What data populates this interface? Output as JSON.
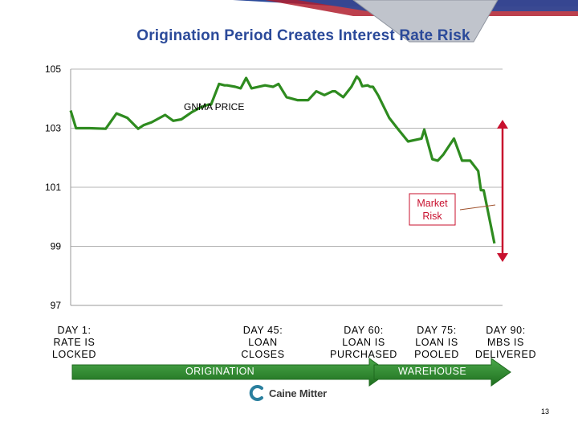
{
  "slide": {
    "title": "Origination Period Creates Interest Rate Risk",
    "page_number": "13",
    "logo_text": "Caine Mitter"
  },
  "chart_data": {
    "type": "line",
    "title": "Origination Period Creates Interest Rate Risk",
    "series": [
      {
        "name": "GNMA PRICE",
        "color": "#2e8b1f",
        "x": [
          0,
          2,
          7,
          13,
          17,
          21,
          25,
          27,
          30,
          35,
          38,
          41,
          45,
          48,
          51,
          52,
          55,
          57,
          58,
          61,
          63,
          65,
          67,
          72,
          75,
          77,
          80,
          84,
          88,
          91,
          94,
          97,
          98,
          101,
          104,
          106,
          107,
          108,
          110,
          111,
          112,
          114,
          118,
          121,
          125,
          130,
          131,
          134,
          136,
          138,
          142,
          145,
          148,
          151,
          152,
          153,
          157
        ],
        "y": [
          103.6,
          103.0,
          103.0,
          102.98,
          103.5,
          103.35,
          102.98,
          103.1,
          103.2,
          103.45,
          103.25,
          103.3,
          103.55,
          103.7,
          103.8,
          103.8,
          104.5,
          104.45,
          104.45,
          104.4,
          104.35,
          104.7,
          104.35,
          104.45,
          104.4,
          104.5,
          104.05,
          103.95,
          103.95,
          104.25,
          104.12,
          104.25,
          104.25,
          104.05,
          104.4,
          104.75,
          104.65,
          104.42,
          104.45,
          104.4,
          104.4,
          104.1,
          103.35,
          103.0,
          102.55,
          102.65,
          102.95,
          101.95,
          101.9,
          102.1,
          102.65,
          101.9,
          101.9,
          101.55,
          100.9,
          100.9,
          99.1
        ]
      }
    ],
    "xlim": [
      0,
      160
    ],
    "ylim": [
      97,
      105
    ],
    "yticks": [
      "105",
      "103",
      "101",
      "99",
      "97"
    ],
    "ytick_values": [
      105,
      103,
      101,
      99,
      97
    ],
    "series_label": "GNMA PRICE",
    "annotation": {
      "text_line1": "Market",
      "text_line2": "Risk"
    },
    "days": [
      {
        "l1": "DAY 1:",
        "l2": "RATE IS",
        "l3": "LOCKED"
      },
      {
        "l1": "DAY 45:",
        "l2": "LOAN",
        "l3": "CLOSES"
      },
      {
        "l1": "DAY 60:",
        "l2": "LOAN IS",
        "l3": "PURCHASED"
      },
      {
        "l1": "DAY 75:",
        "l2": "LOAN IS",
        "l3": "POOLED"
      },
      {
        "l1": "DAY 90:",
        "l2": "MBS IS",
        "l3": "DELIVERED"
      }
    ],
    "phases": [
      "ORIGINATION",
      "WAREHOUSE"
    ],
    "colors": {
      "line": "#2e8b1f",
      "arrow": "#c8102e",
      "grid": "#b4b4b4",
      "phase_arrow": "#2f8f2f",
      "title": "#2b4a9a"
    }
  }
}
